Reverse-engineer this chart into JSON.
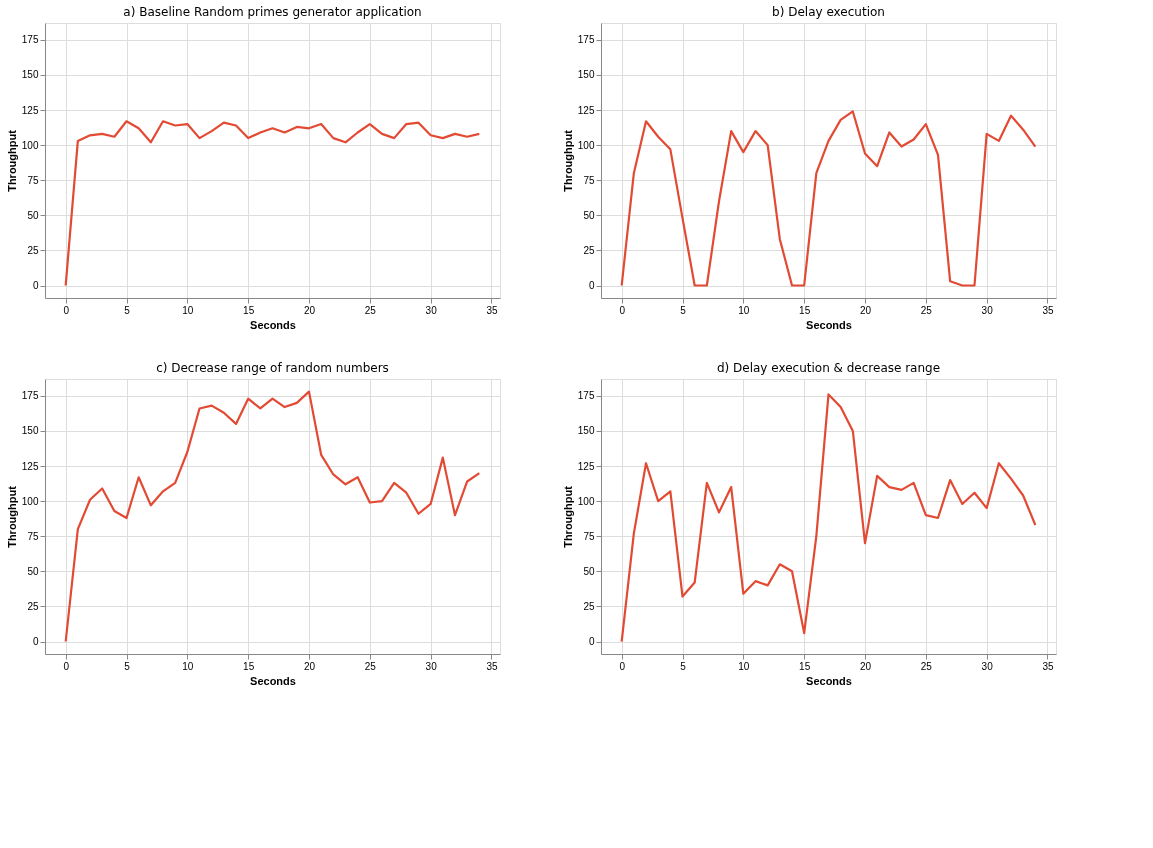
{
  "chart_data": [
    {
      "type": "line",
      "title": "a) Baseline Random primes generator application",
      "xlabel": "Seconds",
      "ylabel": "Throughput",
      "color": "#e24a33",
      "grid": true,
      "xlim": [
        -1.7,
        35.7
      ],
      "ylim": [
        -8.9,
        187
      ],
      "xticks": [
        0,
        5,
        10,
        15,
        20,
        25,
        30,
        35
      ],
      "yticks": [
        0,
        25,
        50,
        75,
        100,
        125,
        150,
        175
      ],
      "x": [
        0,
        1,
        2,
        3,
        4,
        5,
        6,
        7,
        8,
        9,
        10,
        11,
        12,
        13,
        14,
        15,
        16,
        17,
        18,
        19,
        20,
        21,
        22,
        23,
        24,
        25,
        26,
        27,
        28,
        29,
        30,
        31,
        32,
        33,
        34
      ],
      "values": [
        0,
        103,
        107,
        108,
        106,
        117,
        112,
        102,
        117,
        114,
        115,
        105,
        110,
        116,
        114,
        105,
        109,
        112,
        109,
        113,
        112,
        115,
        105,
        102,
        109,
        115,
        108,
        105,
        115,
        116,
        107,
        105,
        108,
        106,
        108
      ]
    },
    {
      "type": "line",
      "title": "b) Delay execution",
      "xlabel": "Seconds",
      "ylabel": "Throughput",
      "color": "#e24a33",
      "grid": true,
      "xlim": [
        -1.7,
        35.7
      ],
      "ylim": [
        -8.9,
        187
      ],
      "xticks": [
        0,
        5,
        10,
        15,
        20,
        25,
        30,
        35
      ],
      "yticks": [
        0,
        25,
        50,
        75,
        100,
        125,
        150,
        175
      ],
      "x": [
        0,
        1,
        2,
        3,
        4,
        5,
        6,
        7,
        8,
        9,
        10,
        11,
        12,
        13,
        14,
        15,
        16,
        17,
        18,
        19,
        20,
        21,
        22,
        23,
        24,
        25,
        26,
        27,
        28,
        29,
        30,
        31,
        32,
        33,
        34
      ],
      "values": [
        0,
        80,
        117,
        106,
        97,
        48,
        0,
        0,
        60,
        110,
        95,
        110,
        100,
        33,
        0,
        0,
        80,
        103,
        118,
        124,
        94,
        85,
        109,
        99,
        104,
        115,
        93,
        3,
        0,
        0,
        108,
        103,
        121,
        111,
        99
      ]
    },
    {
      "type": "line",
      "title": "c) Decrease range of random numbers",
      "xlabel": "Seconds",
      "ylabel": "Throughput",
      "color": "#e24a33",
      "grid": true,
      "xlim": [
        -1.7,
        35.7
      ],
      "ylim": [
        -8.9,
        187
      ],
      "xticks": [
        0,
        5,
        10,
        15,
        20,
        25,
        30,
        35
      ],
      "yticks": [
        0,
        25,
        50,
        75,
        100,
        125,
        150,
        175
      ],
      "x": [
        0,
        1,
        2,
        3,
        4,
        5,
        6,
        7,
        8,
        9,
        10,
        11,
        12,
        13,
        14,
        15,
        16,
        17,
        18,
        19,
        20,
        21,
        22,
        23,
        24,
        25,
        26,
        27,
        28,
        29,
        30,
        31,
        32,
        33,
        34
      ],
      "values": [
        0,
        80,
        101,
        109,
        93,
        88,
        117,
        97,
        107,
        113,
        135,
        166,
        168,
        163,
        155,
        173,
        166,
        173,
        167,
        170,
        178,
        133,
        119,
        112,
        117,
        99,
        100,
        113,
        106,
        91,
        98,
        131,
        90,
        114,
        120
      ]
    },
    {
      "type": "line",
      "title": "d) Delay execution & decrease range",
      "xlabel": "Seconds",
      "ylabel": "Throughput",
      "color": "#e24a33",
      "grid": true,
      "xlim": [
        -1.7,
        35.7
      ],
      "ylim": [
        -8.9,
        187
      ],
      "xticks": [
        0,
        5,
        10,
        15,
        20,
        25,
        30,
        35
      ],
      "yticks": [
        0,
        25,
        50,
        75,
        100,
        125,
        150,
        175
      ],
      "x": [
        0,
        1,
        2,
        3,
        4,
        5,
        6,
        7,
        8,
        9,
        10,
        11,
        12,
        13,
        14,
        15,
        16,
        17,
        18,
        19,
        20,
        21,
        22,
        23,
        24,
        25,
        26,
        27,
        28,
        29,
        30,
        31,
        32,
        33,
        34
      ],
      "values": [
        0,
        77,
        127,
        100,
        107,
        32,
        42,
        113,
        92,
        110,
        34,
        43,
        40,
        55,
        50,
        6,
        75,
        176,
        167,
        150,
        70,
        118,
        110,
        108,
        113,
        90,
        88,
        115,
        98,
        106,
        95,
        127,
        116,
        104,
        83
      ]
    }
  ]
}
